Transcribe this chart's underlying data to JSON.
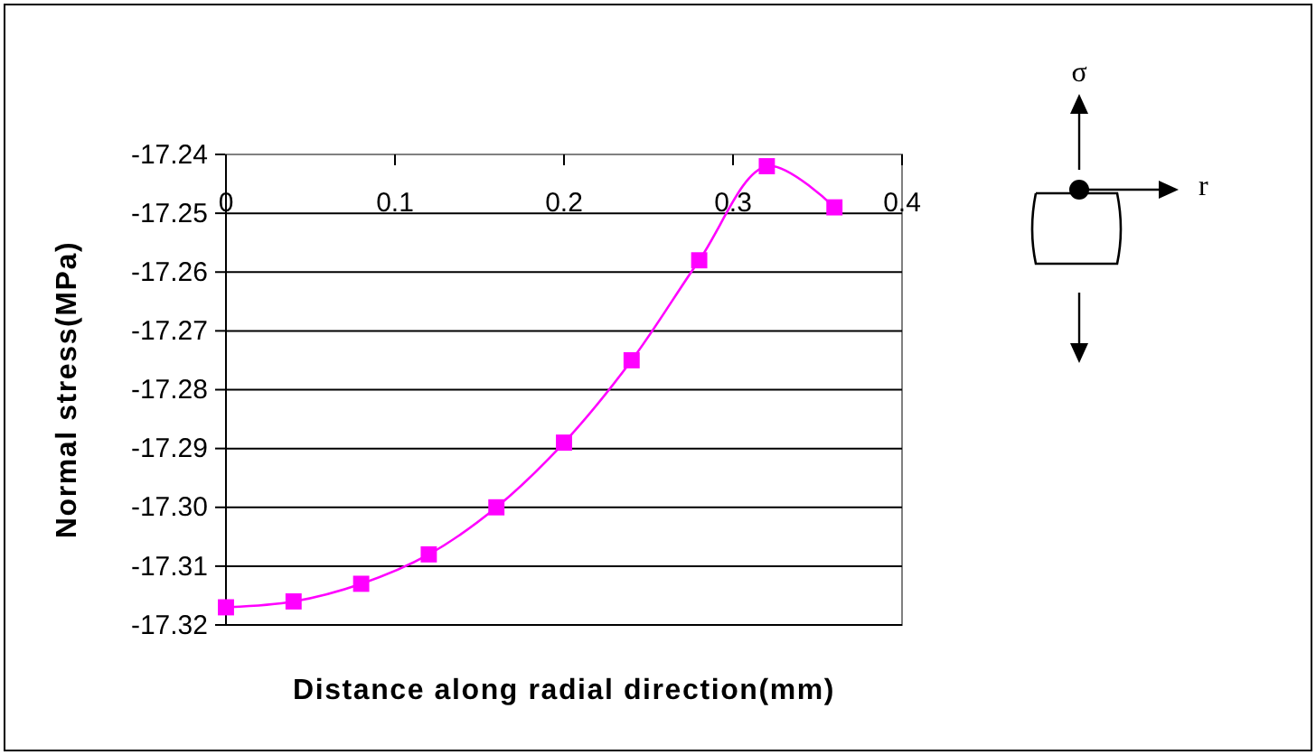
{
  "chart_data": {
    "type": "line",
    "xlabel": "Distance along radial direction(mm)",
    "ylabel": "Normal stress(MPa)",
    "x": [
      0,
      0.04,
      0.08,
      0.12,
      0.16,
      0.2,
      0.24,
      0.28,
      0.32,
      0.36
    ],
    "series": [
      {
        "color": "#ff00ff",
        "values": [
          -17.317,
          -17.316,
          -17.313,
          -17.308,
          -17.3,
          -17.289,
          -17.275,
          -17.258,
          -17.242,
          -17.249
        ]
      }
    ],
    "xlim": [
      0,
      0.4
    ],
    "xticks": [
      0,
      0.1,
      0.2,
      0.3,
      0.4
    ],
    "ylim": [
      -17.32,
      -17.24
    ],
    "yticks": [
      -17.32,
      -17.31,
      {
        "value": -17.3,
        "label": "-17.30"
      },
      -17.29,
      -17.28,
      -17.27,
      -17.26,
      -17.25,
      -17.24
    ],
    "grid": "y",
    "marker": "square",
    "annotations": [
      "σ",
      "r"
    ]
  }
}
